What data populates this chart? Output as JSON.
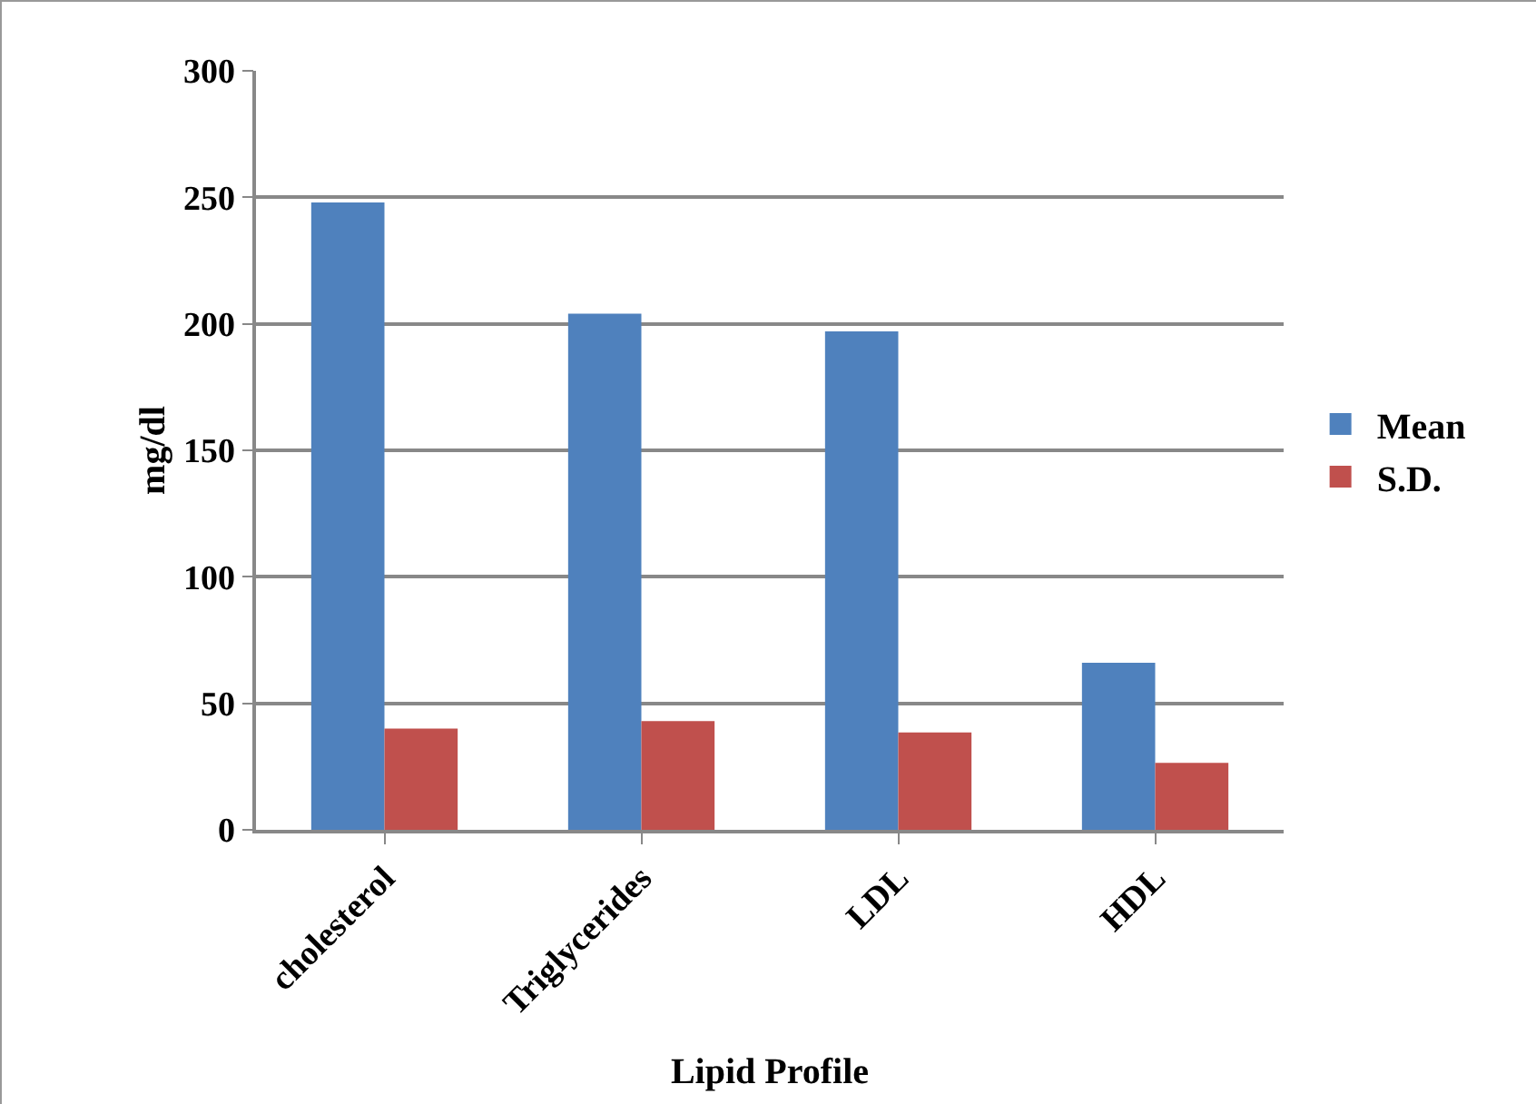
{
  "chart_data": {
    "type": "bar",
    "xlabel": "Lipid Profile",
    "ylabel": "mg/dl",
    "categories": [
      "cholesterol",
      "Triglycerides",
      "LDL",
      "HDL"
    ],
    "series": [
      {
        "name": "Mean",
        "color": "#4f81bd",
        "values": [
          248,
          204,
          197,
          66
        ]
      },
      {
        "name": "S.D.",
        "color": "#c0504d",
        "values": [
          40,
          43,
          38.5,
          26.5
        ]
      }
    ],
    "ylim": [
      0,
      300
    ],
    "yticks": [
      0,
      50,
      100,
      150,
      200,
      250,
      300
    ],
    "grid": "y",
    "legend": "right"
  }
}
